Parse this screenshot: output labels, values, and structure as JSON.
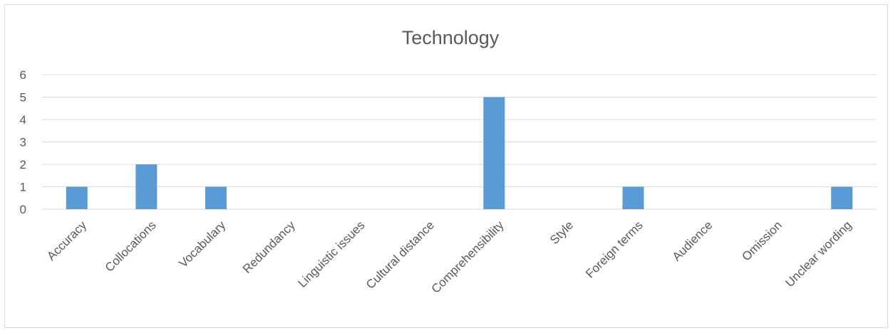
{
  "chart_data": {
    "type": "bar",
    "title": "Technology",
    "xlabel": "",
    "ylabel": "",
    "categories": [
      "Accuracy",
      "Collocations",
      "Vocabulary",
      "Redundancy",
      "Linguistic issues",
      "Cultural distance",
      "Comprehensibility",
      "Style",
      "Foreign terms",
      "Audience",
      "Omission",
      "Unclear wording"
    ],
    "values": [
      1,
      2,
      1,
      0,
      0,
      0,
      5,
      0,
      1,
      0,
      0,
      1
    ],
    "ylim": [
      0,
      6
    ],
    "yticks": [
      0,
      1,
      2,
      3,
      4,
      5,
      6
    ],
    "grid": true,
    "legend": "none",
    "colors": {
      "bar": "#5b9bd5",
      "grid": "#d9d9d9",
      "text": "#595959",
      "border": "#d9d9d9"
    }
  }
}
